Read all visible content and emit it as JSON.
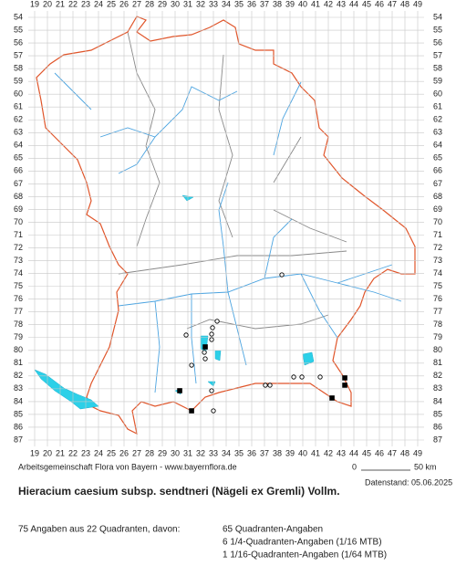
{
  "title": "Hieracium caesium subsp. sendtneri (Nägeli ex Gremli) Vollm.",
  "x_labels": [
    19,
    20,
    21,
    22,
    23,
    24,
    25,
    26,
    27,
    28,
    29,
    30,
    31,
    32,
    33,
    34,
    35,
    36,
    37,
    38,
    39,
    40,
    41,
    42,
    43,
    44,
    45,
    46,
    47,
    48,
    49
  ],
  "y_labels": [
    54,
    55,
    56,
    57,
    58,
    59,
    60,
    61,
    62,
    63,
    64,
    65,
    66,
    67,
    68,
    69,
    70,
    71,
    72,
    73,
    74,
    75,
    76,
    77,
    78,
    79,
    80,
    81,
    82,
    83,
    84,
    85,
    86,
    87
  ],
  "points": [
    {
      "x": 38.36,
      "y": 74.1,
      "kind": "circle"
    },
    {
      "x": 33.29,
      "y": 77.73,
      "kind": "circle"
    },
    {
      "x": 32.93,
      "y": 78.23,
      "kind": "circle"
    },
    {
      "x": 32.86,
      "y": 78.73,
      "kind": "circle"
    },
    {
      "x": 32.86,
      "y": 79.16,
      "kind": "circle"
    },
    {
      "x": 30.86,
      "y": 78.8,
      "kind": "circle"
    },
    {
      "x": 32.29,
      "y": 80.16,
      "kind": "circle"
    },
    {
      "x": 32.36,
      "y": 80.66,
      "kind": "circle"
    },
    {
      "x": 31.29,
      "y": 81.16,
      "kind": "circle"
    },
    {
      "x": 37.07,
      "y": 82.72,
      "kind": "circle"
    },
    {
      "x": 37.43,
      "y": 82.72,
      "kind": "circle"
    },
    {
      "x": 39.29,
      "y": 82.08,
      "kind": "circle"
    },
    {
      "x": 39.93,
      "y": 82.08,
      "kind": "circle"
    },
    {
      "x": 41.36,
      "y": 82.08,
      "kind": "circle"
    },
    {
      "x": 32.86,
      "y": 83.15,
      "kind": "circle"
    },
    {
      "x": 33.0,
      "y": 84.72,
      "kind": "circle"
    },
    {
      "x": 32.36,
      "y": 79.73,
      "kind": "square"
    },
    {
      "x": 30.36,
      "y": 83.15,
      "kind": "square"
    },
    {
      "x": 31.29,
      "y": 84.72,
      "kind": "square"
    },
    {
      "x": 43.29,
      "y": 82.15,
      "kind": "square"
    },
    {
      "x": 43.29,
      "y": 82.72,
      "kind": "square"
    },
    {
      "x": 42.29,
      "y": 83.72,
      "kind": "square"
    }
  ],
  "footer": {
    "credit": "Arbeitsgemeinschaft Flora von Bayern - www.bayernflora.de",
    "scale_start": "0",
    "scale_end": "50 km",
    "date": "Datenstand: 05.06.2025"
  },
  "summary": {
    "total": "75 Angaben aus 22 Quadranten, davon:",
    "lines": [
      "65 Quadranten-Angaben",
      "6 1/4-Quadranten-Angaben (1/16 MTB)",
      "1 1/16-Quadranten-Angaben (1/64 MTB)"
    ]
  }
}
